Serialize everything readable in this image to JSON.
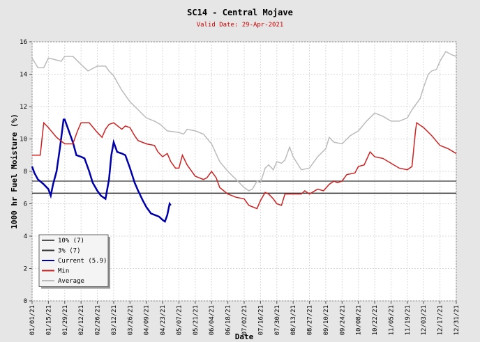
{
  "chart_data": {
    "type": "line",
    "title": "SC14 - Central Mojave",
    "subtitle": "Valid Date: 29-Apr-2021",
    "x_label": "Date",
    "y_label": "1000 hr Fuel Moisture (%)",
    "xlim": [
      0,
      364
    ],
    "ylim": [
      0,
      16
    ],
    "yticks": [
      0,
      2,
      4,
      6,
      8,
      10,
      12,
      14,
      16
    ],
    "xticks": [
      {
        "value": 0,
        "label": "01/01/21"
      },
      {
        "value": 14,
        "label": "01/15/21"
      },
      {
        "value": 28,
        "label": "01/29/21"
      },
      {
        "value": 42,
        "label": "02/12/21"
      },
      {
        "value": 56,
        "label": "02/26/21"
      },
      {
        "value": 70,
        "label": "03/12/21"
      },
      {
        "value": 84,
        "label": "03/26/21"
      },
      {
        "value": 98,
        "label": "04/09/21"
      },
      {
        "value": 112,
        "label": "04/23/21"
      },
      {
        "value": 126,
        "label": "05/07/21"
      },
      {
        "value": 140,
        "label": "05/21/21"
      },
      {
        "value": 154,
        "label": "06/04/21"
      },
      {
        "value": 168,
        "label": "06/18/21"
      },
      {
        "value": 182,
        "label": "07/02/21"
      },
      {
        "value": 196,
        "label": "07/16/21"
      },
      {
        "value": 210,
        "label": "07/30/21"
      },
      {
        "value": 224,
        "label": "08/13/21"
      },
      {
        "value": 238,
        "label": "08/27/21"
      },
      {
        "value": 252,
        "label": "09/10/21"
      },
      {
        "value": 266,
        "label": "09/24/21"
      },
      {
        "value": 280,
        "label": "10/08/21"
      },
      {
        "value": 294,
        "label": "10/22/21"
      },
      {
        "value": 308,
        "label": "11/05/21"
      },
      {
        "value": 322,
        "label": "11/19/21"
      },
      {
        "value": 336,
        "label": "12/03/21"
      },
      {
        "value": 350,
        "label": "12/17/21"
      },
      {
        "value": 364,
        "label": "12/31/21"
      }
    ],
    "grid": true,
    "legend": "lower left",
    "series": [
      {
        "name": "10% (7)",
        "color": "#555555",
        "x": [
          0,
          364
        ],
        "values": [
          7.4,
          7.4
        ]
      },
      {
        "name": "3% (7)",
        "color": "#333333",
        "x": [
          0,
          364
        ],
        "values": [
          6.65,
          6.65
        ]
      },
      {
        "name": "Current (5.9)",
        "color": "#0000aa",
        "x": [
          0,
          2,
          5,
          10,
          14,
          16,
          18,
          21,
          24,
          27,
          28,
          31,
          35,
          38,
          42,
          45,
          49,
          52,
          56,
          59,
          63,
          66,
          68,
          70,
          73,
          77,
          80,
          84,
          88,
          91,
          95,
          98,
          102,
          109,
          112,
          114,
          116,
          118,
          119
        ],
        "values": [
          8.3,
          7.9,
          7.5,
          7.2,
          6.9,
          6.5,
          7.2,
          8.0,
          9.5,
          11.2,
          11.2,
          10.6,
          9.8,
          9.0,
          8.9,
          8.8,
          8.0,
          7.3,
          6.8,
          6.5,
          6.3,
          7.5,
          9.0,
          9.8,
          9.2,
          9.1,
          9.0,
          8.2,
          7.3,
          6.8,
          6.2,
          5.8,
          5.4,
          5.2,
          5.0,
          4.9,
          5.3,
          6.0,
          5.9
        ]
      },
      {
        "name": "Min",
        "color": "#cc2222",
        "x": [
          0,
          7,
          10,
          14,
          21,
          28,
          35,
          39,
          42,
          49,
          56,
          60,
          63,
          66,
          70,
          77,
          80,
          84,
          88,
          91,
          98,
          105,
          108,
          112,
          116,
          119,
          123,
          126,
          129,
          133,
          140,
          147,
          150,
          154,
          158,
          161,
          168,
          175,
          182,
          186,
          193,
          196,
          200,
          203,
          207,
          210,
          214,
          217,
          224,
          231,
          234,
          238,
          245,
          250,
          255,
          259,
          262,
          266,
          270,
          277,
          280,
          285,
          290,
          294,
          301,
          308,
          315,
          322,
          326,
          329,
          330,
          336,
          343,
          350,
          357,
          364
        ],
        "values": [
          9.0,
          9.0,
          11.0,
          10.7,
          10.1,
          9.7,
          9.7,
          10.5,
          11.0,
          11.0,
          10.4,
          10.1,
          10.6,
          10.9,
          11.0,
          10.6,
          10.8,
          10.7,
          10.2,
          9.9,
          9.7,
          9.6,
          9.2,
          8.9,
          9.1,
          8.6,
          8.2,
          8.2,
          9.0,
          8.4,
          7.7,
          7.5,
          7.6,
          8.0,
          7.6,
          7.0,
          6.6,
          6.4,
          6.3,
          5.9,
          5.7,
          6.2,
          6.7,
          6.6,
          6.3,
          6.0,
          5.9,
          6.6,
          6.6,
          6.6,
          6.8,
          6.6,
          6.9,
          6.8,
          7.2,
          7.4,
          7.3,
          7.4,
          7.8,
          7.9,
          8.3,
          8.4,
          9.2,
          8.9,
          8.8,
          8.5,
          8.2,
          8.1,
          8.3,
          10.5,
          11.0,
          10.7,
          10.2,
          9.6,
          9.4,
          9.1
        ]
      },
      {
        "name": "Average",
        "color": "#bbbbbb",
        "x": [
          0,
          5,
          10,
          14,
          25,
          28,
          35,
          42,
          48,
          56,
          63,
          66,
          70,
          77,
          84,
          91,
          98,
          105,
          110,
          116,
          126,
          130,
          133,
          140,
          147,
          154,
          161,
          168,
          175,
          182,
          186,
          189,
          193,
          196,
          200,
          203,
          207,
          210,
          214,
          217,
          221,
          224,
          231,
          238,
          245,
          252,
          255,
          259,
          266,
          273,
          280,
          287,
          294,
          301,
          308,
          315,
          322,
          326,
          333,
          336,
          340,
          343,
          347,
          350,
          355,
          360,
          364
        ],
        "values": [
          15.0,
          14.4,
          14.4,
          15.0,
          14.8,
          15.1,
          15.1,
          14.6,
          14.2,
          14.5,
          14.5,
          14.2,
          13.9,
          13.0,
          12.3,
          11.8,
          11.3,
          11.1,
          10.9,
          10.5,
          10.4,
          10.3,
          10.6,
          10.5,
          10.3,
          9.7,
          8.6,
          8.0,
          7.5,
          7.0,
          6.8,
          6.9,
          7.4,
          7.3,
          8.2,
          8.4,
          8.1,
          8.6,
          8.5,
          8.7,
          9.5,
          8.9,
          8.1,
          8.2,
          8.9,
          9.4,
          10.1,
          9.8,
          9.7,
          10.2,
          10.5,
          11.1,
          11.6,
          11.4,
          11.1,
          11.1,
          11.3,
          11.8,
          12.5,
          13.2,
          14.0,
          14.2,
          14.3,
          14.8,
          15.4,
          15.2,
          15.1
        ]
      }
    ]
  }
}
